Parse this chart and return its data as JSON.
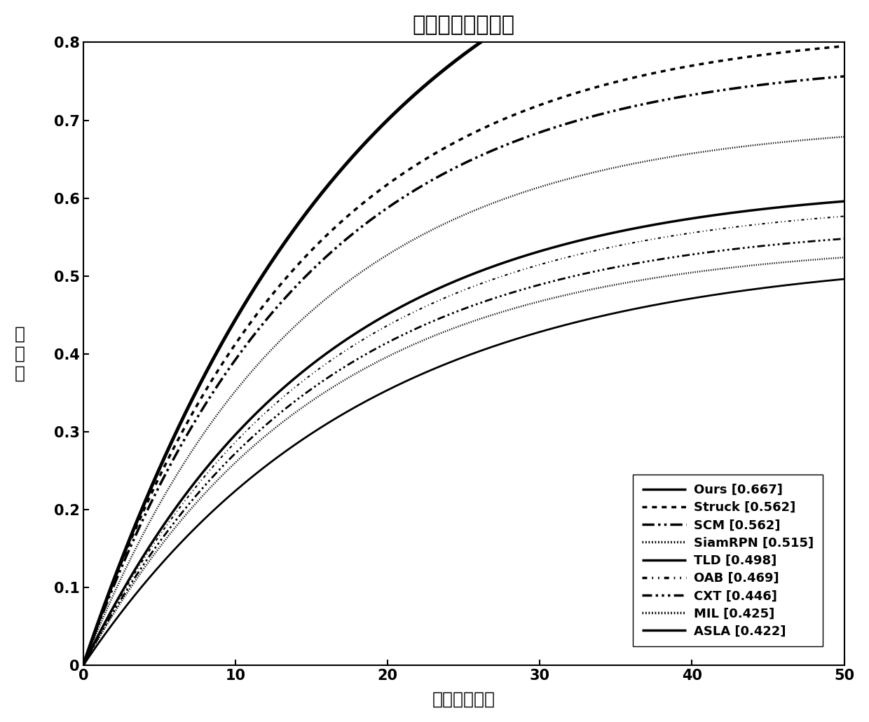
{
  "title": "精确率曲线对比图",
  "xlabel": "位置误差阈値",
  "ylabel": "精\n确\n率",
  "xlim": [
    0,
    50
  ],
  "ylim": [
    0,
    0.8
  ],
  "xticks": [
    0,
    10,
    20,
    30,
    40,
    50
  ],
  "yticks": [
    0,
    0.1,
    0.2,
    0.3,
    0.4,
    0.5,
    0.6,
    0.7,
    0.8
  ],
  "series": [
    {
      "label": "Ours [0.667]",
      "asymptote": 1.05,
      "k": 0.055,
      "linestyle": "solid",
      "linewidth": 3.5
    },
    {
      "label": "Struck [0.562]",
      "asymptote": 0.82,
      "k": 0.07,
      "linestyle": "dotted",
      "linewidth": 2.5
    },
    {
      "label": "SCM [0.562]",
      "asymptote": 0.78,
      "k": 0.07,
      "linestyle": "dashdotdot",
      "linewidth": 2.5
    },
    {
      "label": "SiamRPN [0.515]",
      "asymptote": 0.7,
      "k": 0.07,
      "linestyle": "densely_dotted",
      "linewidth": 1.8
    },
    {
      "label": "TLD [0.498]",
      "asymptote": 0.62,
      "k": 0.065,
      "linestyle": "solid",
      "linewidth": 2.5
    },
    {
      "label": "OAB [0.469]",
      "asymptote": 0.6,
      "k": 0.065,
      "linestyle": "loosely_dashdotdot",
      "linewidth": 1.5
    },
    {
      "label": "CXT [0.446]",
      "asymptote": 0.57,
      "k": 0.065,
      "linestyle": "dashdot",
      "linewidth": 2.0
    },
    {
      "label": "MIL [0.425]",
      "asymptote": 0.545,
      "k": 0.065,
      "linestyle": "densely_dotted2",
      "linewidth": 1.8
    },
    {
      "label": "ASLA [0.422]",
      "asymptote": 0.53,
      "k": 0.055,
      "linestyle": "solid_thin",
      "linewidth": 2.0
    }
  ]
}
